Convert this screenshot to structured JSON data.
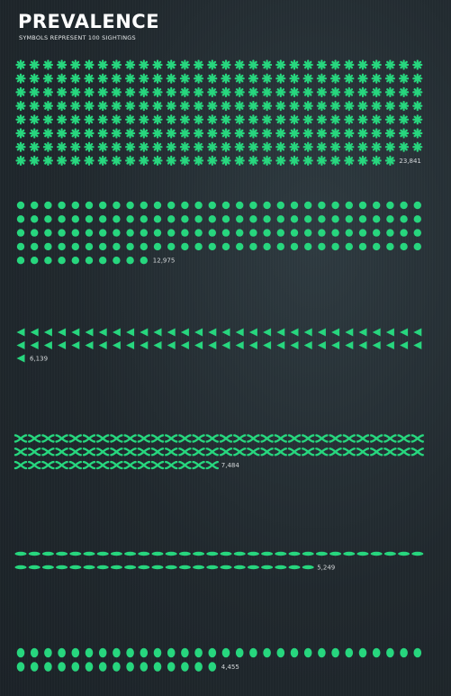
{
  "header": {
    "title": "PREVALENCE",
    "subtitle": "SYMBOLS REPRESENT 100 SIGHTINGS"
  },
  "colors": {
    "symbol": "#27d67e",
    "label": "#d4d8da",
    "background": "#20282d"
  },
  "chart_data": {
    "type": "pictograph",
    "unit": 100,
    "title": "PREVALENCE",
    "subtitle": "SYMBOLS REPRESENT 100 SIGHTINGS",
    "series": [
      {
        "shape": "asterisk-icon",
        "value": 23841,
        "label": "23,841"
      },
      {
        "shape": "circle-icon",
        "value": 12975,
        "label": "12,975"
      },
      {
        "shape": "triangle-icon",
        "value": 6139,
        "label": "6,139"
      },
      {
        "shape": "cross-icon",
        "value": 7484,
        "label": "7,484"
      },
      {
        "shape": "disk-icon",
        "value": 5249,
        "label": "5,249"
      },
      {
        "shape": "oval-icon",
        "value": 4455,
        "label": "4,455"
      }
    ]
  }
}
